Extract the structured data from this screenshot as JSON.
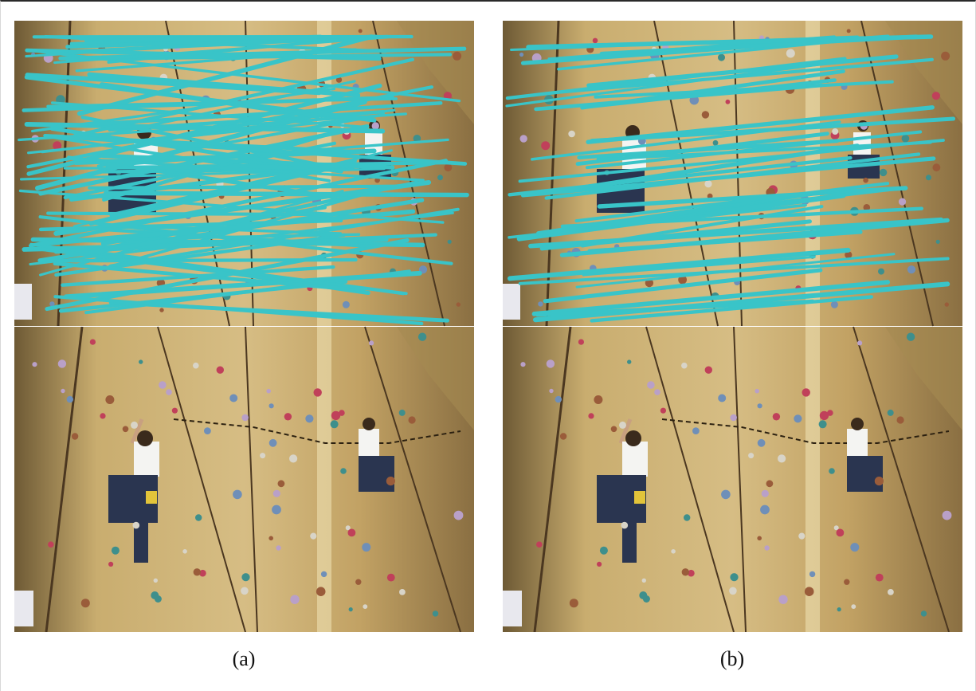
{
  "figure": {
    "panels": [
      {
        "caption": "(a)",
        "match_count_density": "dense"
      },
      {
        "caption": "(b)",
        "match_count_density": "sparse"
      }
    ]
  },
  "colors": {
    "match_line": "#39c4c8",
    "wall_light": "#d8bf86",
    "wall_mid": "#b89a5a",
    "wall_dark": "#5a4526",
    "shirt": "#f4f4f2",
    "pants": "#2a3550"
  }
}
